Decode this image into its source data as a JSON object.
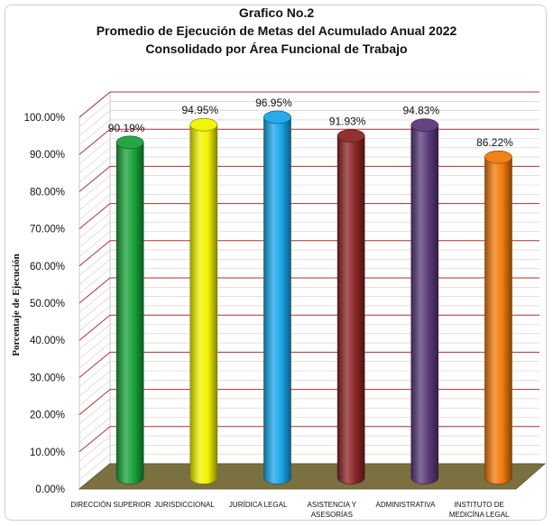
{
  "chart_data": {
    "type": "bar",
    "title_lines": [
      "Grafico No.2",
      "Promedio de Ejecución de Metas del Acumulado Anual 2022",
      "Consolidado por Área Funcional de Trabajo"
    ],
    "xlabel": "",
    "ylabel": "Porcentaje de Ejecución",
    "ylim": [
      0,
      100
    ],
    "ytick_step": 10,
    "minor_gridlines": true,
    "legend": "none",
    "categories": [
      [
        "DIRECCIÓN SUPERIOR"
      ],
      [
        "JURISDICCIONAL"
      ],
      [
        "JURÍDICA LEGAL"
      ],
      [
        "ASISTENCIA Y",
        "ASESORÍAS"
      ],
      [
        "ADMINISTRATIVA"
      ],
      [
        "INSTITUTO DE",
        "MEDICÍNA LEGAL"
      ]
    ],
    "values": [
      90.19,
      94.95,
      96.95,
      91.93,
      94.83,
      86.22
    ],
    "value_labels": [
      "90.19%",
      "94.95%",
      "96.95%",
      "91.93%",
      "94.83%",
      "86.22%"
    ],
    "colors": [
      "#1aa33a",
      "#f2f200",
      "#1aa7e8",
      "#8c2626",
      "#5b3a7a",
      "#f07a0c"
    ],
    "grid_color": "#b03030",
    "floor_color": "#7a7040"
  }
}
